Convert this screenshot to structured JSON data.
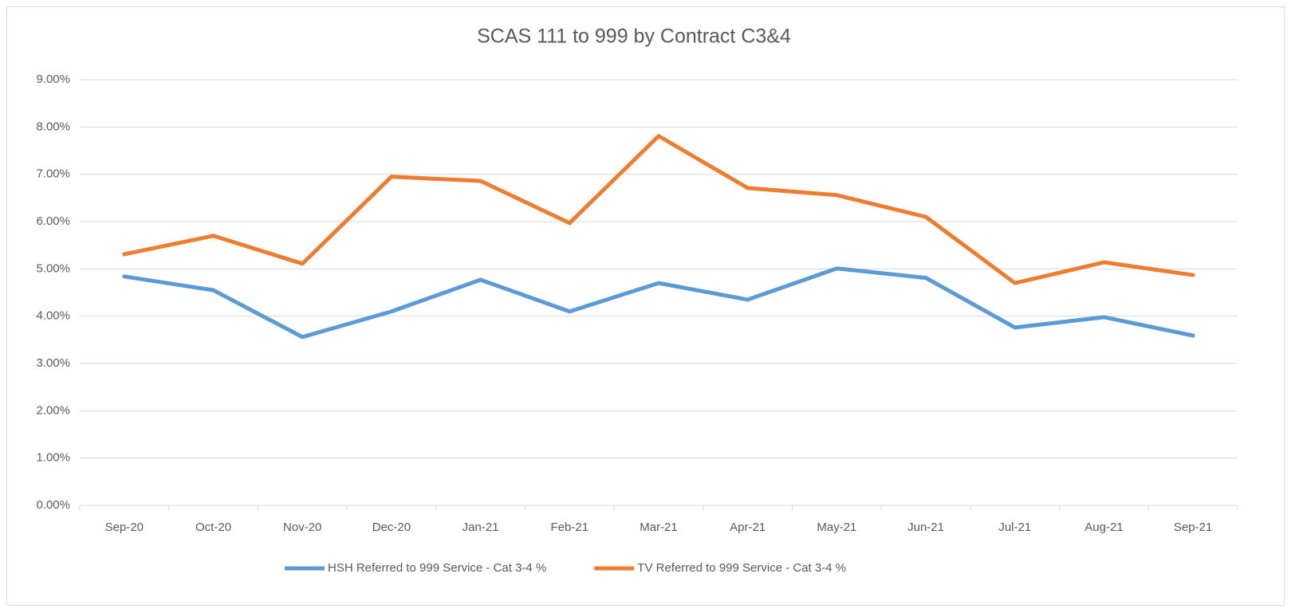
{
  "chart_data": {
    "type": "line",
    "title": "SCAS 111  to 999 by Contract C3&4",
    "categories": [
      "Sep-20",
      "Oct-20",
      "Nov-20",
      "Dec-20",
      "Jan-21",
      "Feb-21",
      "Mar-21",
      "Apr-21",
      "May-21",
      "Jun-21",
      "Jul-21",
      "Aug-21",
      "Sep-21"
    ],
    "series": [
      {
        "name": "HSH Referred to 999 Service - Cat 3-4 %",
        "color": "#5b9bd5",
        "values": [
          4.84,
          4.55,
          3.56,
          4.1,
          4.77,
          4.1,
          4.7,
          4.35,
          5.01,
          4.81,
          3.76,
          3.98,
          3.59
        ]
      },
      {
        "name": "TV Referred to 999 Service - Cat 3-4 %",
        "color": "#ed7d31",
        "values": [
          5.31,
          5.7,
          5.11,
          6.95,
          6.86,
          5.97,
          7.81,
          6.71,
          6.56,
          6.1,
          4.7,
          5.14,
          4.87
        ]
      }
    ],
    "ylim": [
      0,
      9
    ],
    "yticks": [
      {
        "value": 0,
        "label": "0.00%"
      },
      {
        "value": 1,
        "label": "1.00%"
      },
      {
        "value": 2,
        "label": "2.00%"
      },
      {
        "value": 3,
        "label": "3.00%"
      },
      {
        "value": 4,
        "label": "4.00%"
      },
      {
        "value": 5,
        "label": "5.00%"
      },
      {
        "value": 6,
        "label": "6.00%"
      },
      {
        "value": 7,
        "label": "7.00%"
      },
      {
        "value": 8,
        "label": "8.00%"
      },
      {
        "value": 9,
        "label": "9.00%"
      }
    ],
    "grid": true,
    "legend": "bottom"
  }
}
